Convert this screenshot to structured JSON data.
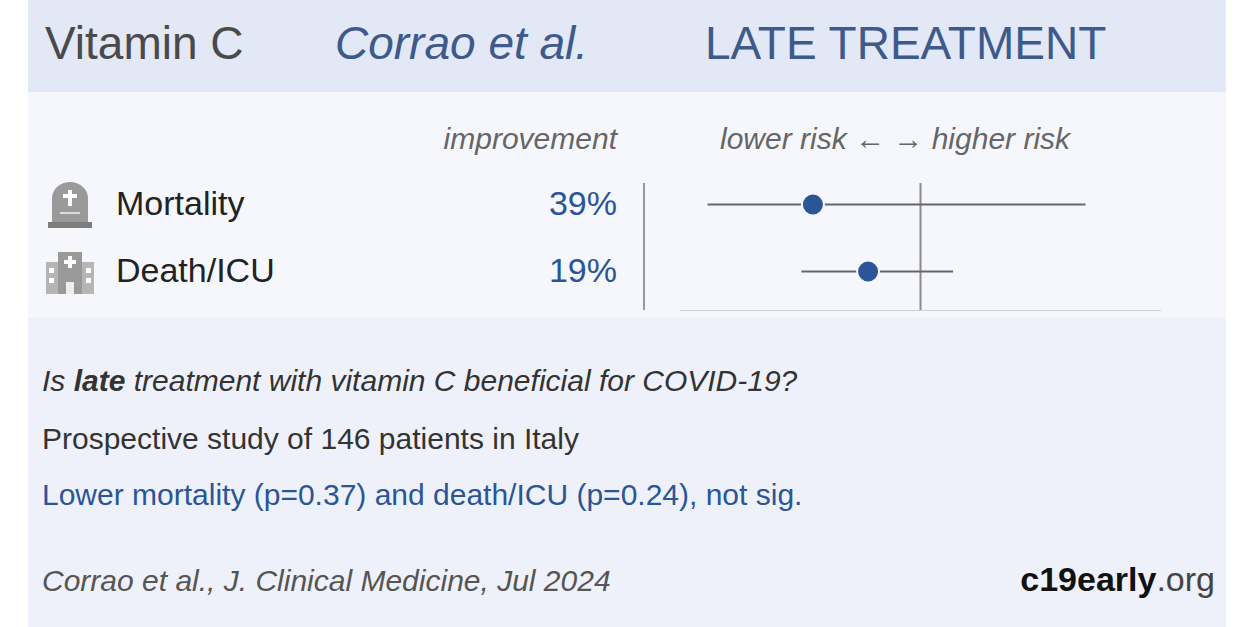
{
  "chart_data": {
    "type": "forest",
    "title": "Vitamin C",
    "authors": "Corrao et al.",
    "stage": "LATE TREATMENT",
    "column_labels": {
      "improvement": "improvement",
      "risk": "lower risk ← → higher risk"
    },
    "categories": [
      "Mortality",
      "Death/ICU"
    ],
    "values": [
      0.61,
      0.81
    ],
    "ci_low": [
      0.23,
      0.57
    ],
    "ci_high": [
      1.6,
      1.12
    ],
    "improvement": [
      "39%",
      "19%"
    ],
    "reference_line": 1,
    "xlim": [
      0.13,
      1.87
    ],
    "xticks": [],
    "tick_labels": false,
    "color": "#2a5597",
    "question": "Is late treatment with vitamin C beneficial for COVID-19?",
    "question_emphasis": "late",
    "description": "Prospective study of 146 patients in Italy",
    "result": "Lower mortality (p=0.37) and death/ICU (p=0.24), not sig.",
    "citation": "Corrao et al., J. Clinical Medicine, Jul 2024",
    "site": "c19early.org"
  }
}
